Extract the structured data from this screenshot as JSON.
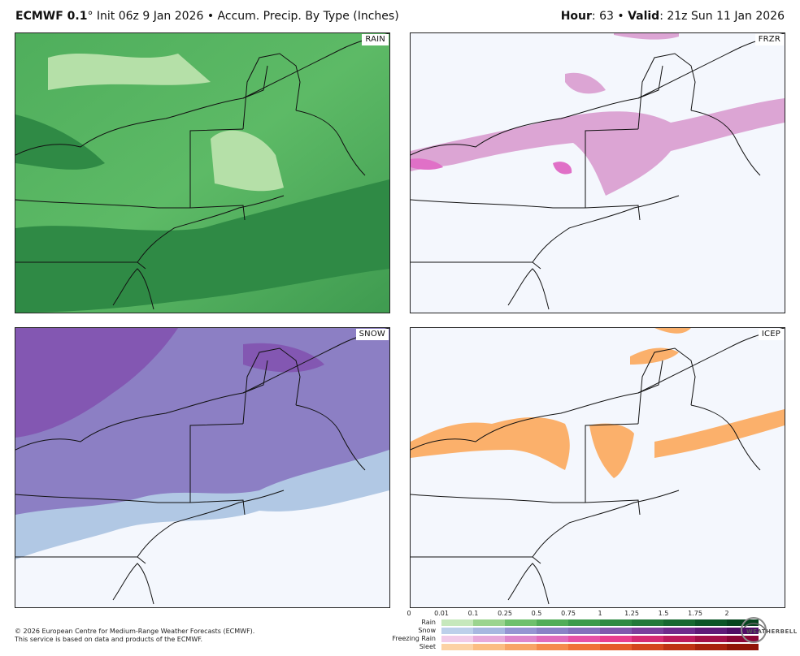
{
  "header": {
    "model": "ECMWF 0.1",
    "degree": "°",
    "init": "Init 06z 9 Jan 2026",
    "bullet": "•",
    "product": "Accum. Precip. By Type (Inches)",
    "hour_label": "Hour",
    "hour_value": ": 63",
    "valid_label": "Valid",
    "valid_value": ": 21z Sun 11 Jan 2026"
  },
  "panels": {
    "rain": {
      "label": "RAIN",
      "fill": "#5db865",
      "dark": "#2f8a45",
      "light": "#b5e0a8"
    },
    "frzr": {
      "label": "FRZR",
      "fill": "#dca5d4",
      "dark": "#e070c7"
    },
    "snow": {
      "label": "SNOW",
      "fill": "#8c7fc4",
      "dark": "#8357b2",
      "light": "#b1c8e4"
    },
    "icep": {
      "label": "ICEP",
      "fill": "#fbb06b"
    }
  },
  "legend": {
    "ticks": [
      "0",
      "0.01",
      "0.1",
      "0.25",
      "0.5",
      "0.75",
      "1",
      "1.25",
      "1.5",
      "1.75",
      "2"
    ],
    "rows": [
      {
        "name": "Rain",
        "colors": [
          "#c6e8bc",
          "#9bd48f",
          "#6fc06d",
          "#52ad58",
          "#3d9b4c",
          "#2e8a43",
          "#23793a",
          "#176831",
          "#0c5527",
          "#06441e"
        ]
      },
      {
        "name": "Snow",
        "colors": [
          "#bcd0ea",
          "#a7b8e0",
          "#9595d2",
          "#8a82c6",
          "#8570bc",
          "#8158ad",
          "#7b3f9c",
          "#6f2b8c",
          "#5f1a78",
          "#4f0d65"
        ]
      },
      {
        "name": "Freezing Rain",
        "colors": [
          "#f1cbe8",
          "#e7a9da",
          "#de86cc",
          "#e06bbc",
          "#e650a6",
          "#e83d8e",
          "#d52a73",
          "#bd1a5d",
          "#a30f49",
          "#8a0637"
        ]
      },
      {
        "name": "Sleet",
        "colors": [
          "#fcd2a4",
          "#fbbd82",
          "#f8a466",
          "#f58a4c",
          "#f07137",
          "#e55a28",
          "#d4441c",
          "#bf3113",
          "#a8200c",
          "#901406"
        ]
      }
    ]
  },
  "footer": {
    "line1": "© 2026 European Centre for Medium-Range Weather Forecasts (ECMWF).",
    "line2": "This service is based on data and products of the ECMWF."
  },
  "logo": {
    "text": "WEATHERBELL"
  }
}
